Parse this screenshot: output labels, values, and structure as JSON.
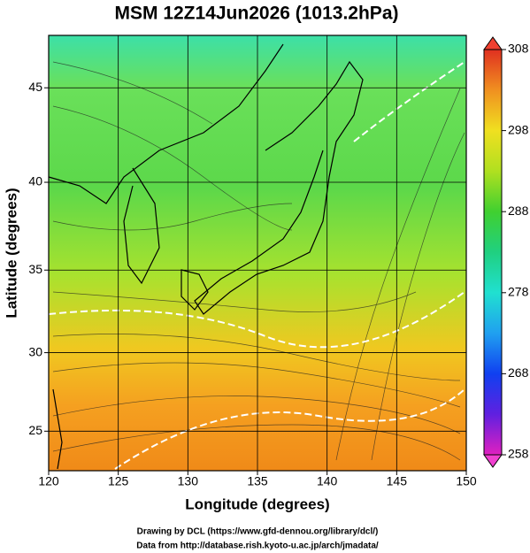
{
  "title": "MSM 12Z14Jun2026 (1013.2hPa)",
  "x_axis": {
    "label": "Longitude (degrees)",
    "lim": [
      120,
      150
    ],
    "ticks": [
      120,
      125,
      130,
      135,
      140,
      145,
      150
    ]
  },
  "y_axis": {
    "label": "Latitude  (degrees)",
    "lim": [
      22.4,
      47.6
    ],
    "ticks": [
      25,
      30,
      35,
      40,
      45
    ],
    "projection": "mercator"
  },
  "colorbar": {
    "lim": [
      258,
      308
    ],
    "ticks": [
      258,
      268,
      278,
      288,
      298,
      308
    ]
  },
  "credits": [
    "Drawing by DCL (https://www.gfd-dennou.org/library/dcl/)",
    "Data from http://database.rish.kyoto-u.ac.jp/arch/jmadata/"
  ]
}
